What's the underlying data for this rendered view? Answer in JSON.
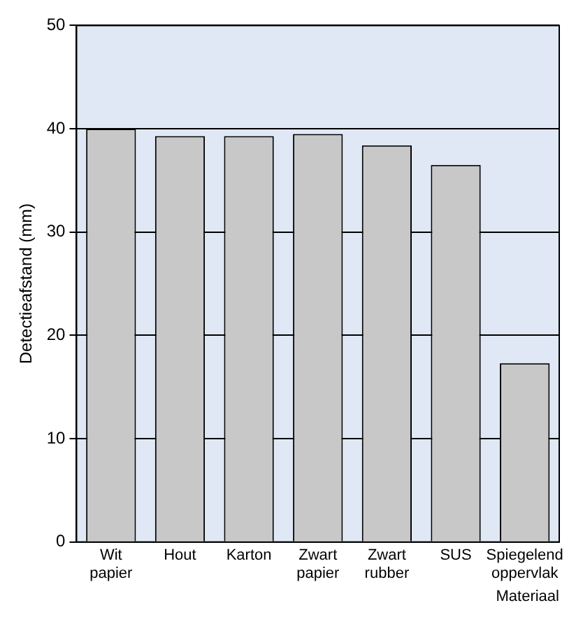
{
  "chart_data": {
    "type": "bar",
    "xlabel": "Materiaal",
    "ylabel": "Detectieafstand (mm)",
    "categories": [
      "Wit papier",
      "Hout",
      "Karton",
      "Zwart papier",
      "Zwart rubber",
      "SUS",
      "Spiegelend oppervlak"
    ],
    "series": [
      {
        "color": "#c8c8c8",
        "values": [
          40,
          39.3,
          39.3,
          39.5,
          38.4,
          36.5,
          17.3
        ]
      }
    ],
    "ylim": [
      0,
      50
    ],
    "yticks": [
      0,
      10,
      20,
      30,
      40,
      50
    ],
    "grid": "y",
    "legend": false
  }
}
